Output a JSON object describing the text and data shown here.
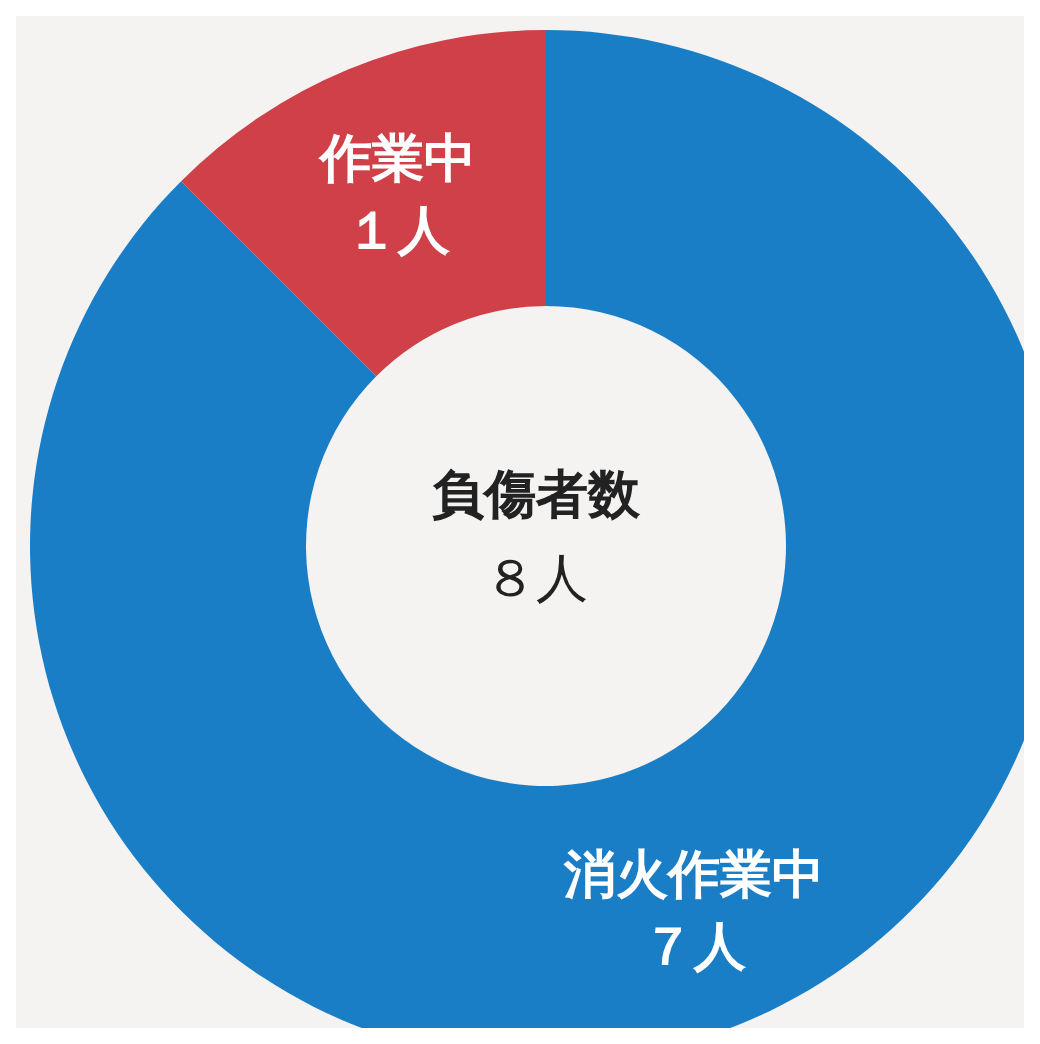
{
  "chart_data": {
    "type": "donut",
    "title": "負傷者数",
    "subtitle": "８人",
    "categories": [
      "消火作業中",
      "作業中"
    ],
    "values": [
      7,
      1
    ],
    "value_labels": [
      "７人",
      "１人"
    ],
    "colors": [
      "#1a7ec6",
      "#cf4049"
    ]
  }
}
